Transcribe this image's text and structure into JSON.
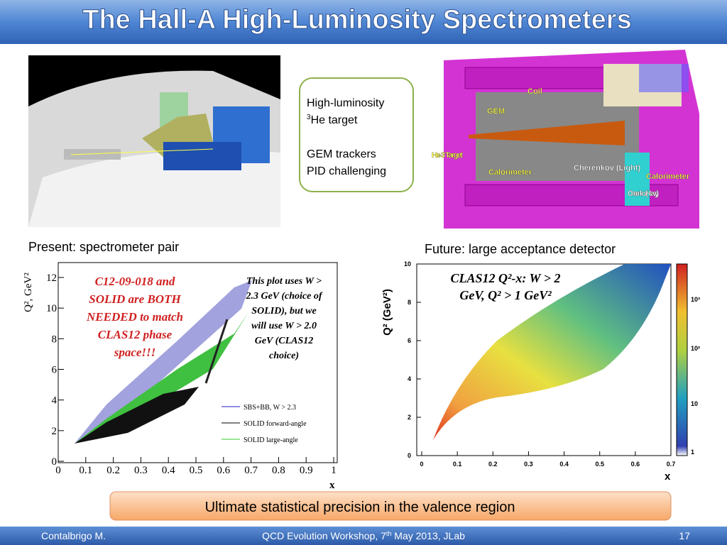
{
  "header": {
    "title": "The Hall-A High-Luminosity Spectrometers"
  },
  "left_image": {
    "caption": "Present: spectrometer pair"
  },
  "right_image": {
    "caption": "Future: large acceptance detector",
    "labels": [
      "Coil",
      "GEM",
      "He-3 Target",
      "Calorimeter",
      "Cherenkov (Light)",
      "Calorimeter",
      "Cherenkov (Heavy)"
    ]
  },
  "textbox": {
    "line1": "High-luminosity",
    "line2_sup": "3",
    "line2": "He target",
    "line3": "GEM trackers",
    "line4": "PID challenging"
  },
  "plot_left": {
    "y_label": "Q², GeV²",
    "x_label": "x",
    "xticks": [
      0,
      0.1,
      0.2,
      0.3,
      0.4,
      0.5,
      0.6,
      0.7,
      0.8,
      0.9,
      1
    ],
    "yticks": [
      0,
      2,
      4,
      6,
      8,
      10,
      12
    ],
    "note_red": [
      "C12-09-018 and",
      "SOLID are BOTH",
      "NEEDED to match",
      "CLAS12 phase",
      "space!!!"
    ],
    "note_black": [
      "This plot uses W >",
      "2.3 GeV (choice of",
      "SOLID), but we",
      "will use W > 2.0",
      "GeV (CLAS12",
      "choice)"
    ],
    "legend": [
      "SBS+BB, W > 2.3",
      "SOLID forward-angle",
      "SOLID large-angle"
    ]
  },
  "plot_right": {
    "title": [
      "CLAS12 Q²-x: W > 2",
      "GeV, Q² > 1 GeV²"
    ],
    "y_label": "Q² (GeV²)",
    "x_label": "x",
    "xticks": [
      0,
      0.1,
      0.2,
      0.3,
      0.4,
      0.5,
      0.6,
      0.7
    ],
    "yticks": [
      0,
      2,
      4,
      6,
      8,
      10
    ],
    "colorbar": [
      "1",
      "10",
      "10²",
      "10³"
    ]
  },
  "banner": {
    "text": "Ultimate statistical precision in the valence region"
  },
  "footer": {
    "author": "Contalbrigo M.",
    "event_pre": "QCD Evolution Workshop, 7",
    "event_sup": "th",
    "event_post": " May 2013, JLab",
    "page": "17"
  }
}
